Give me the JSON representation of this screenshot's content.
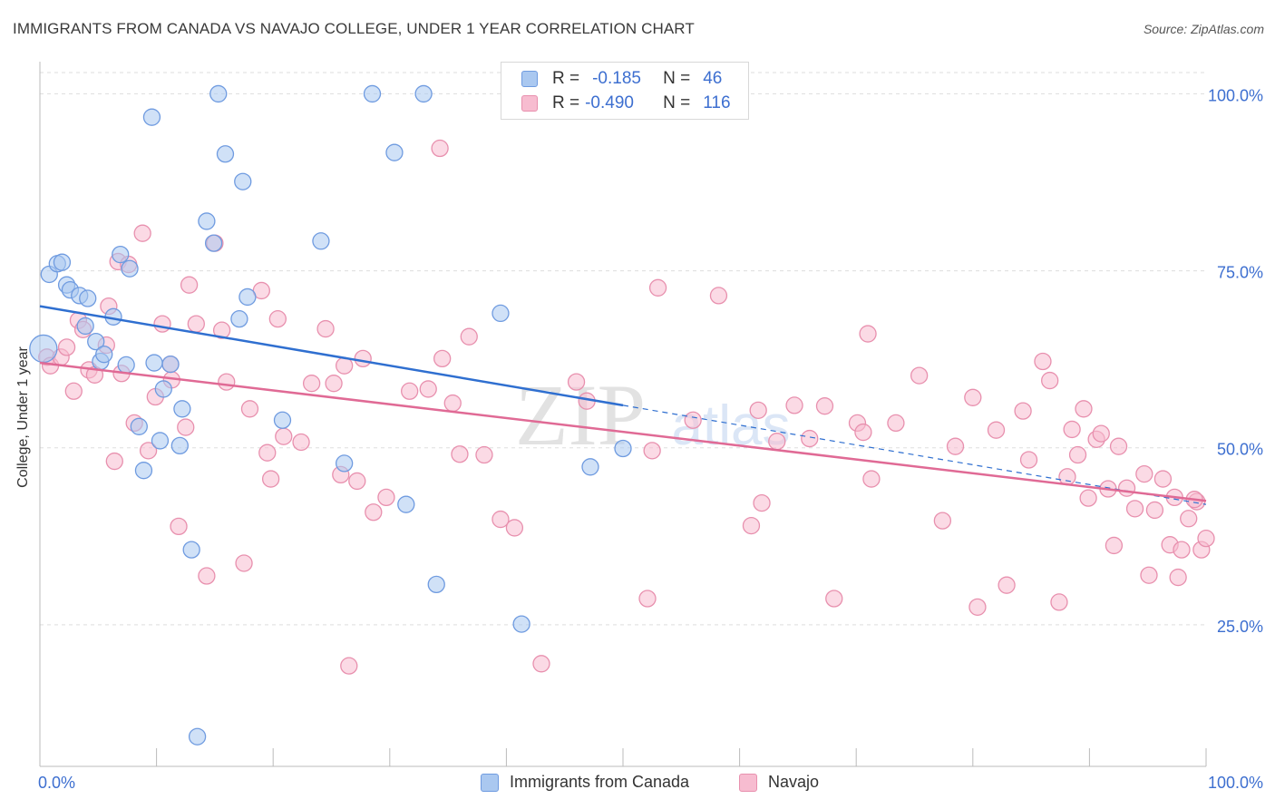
{
  "header": {
    "title": "IMMIGRANTS FROM CANADA VS NAVAJO COLLEGE, UNDER 1 YEAR CORRELATION CHART",
    "source": "Source: ZipAtlas.com"
  },
  "colors": {
    "blue_fill": "#aac8f0",
    "blue_stroke": "#6f9be0",
    "blue_line": "#2f6fd0",
    "pink_fill": "#f7bcd0",
    "pink_stroke": "#e890ae",
    "pink_line": "#e06a95",
    "tick_label": "#3d6fd0",
    "grid": "#dddddd"
  },
  "legend": {
    "rows": [
      {
        "r_label": "R =",
        "r_value": "-0.185",
        "n_label": "N =",
        "n_value": "46",
        "color": "#aac8f0",
        "stroke": "#6f9be0"
      },
      {
        "r_label": "R =",
        "r_value": "-0.490",
        "n_label": "N =",
        "n_value": "116",
        "color": "#f7bcd0",
        "stroke": "#e890ae"
      }
    ]
  },
  "watermark": {
    "zip": "ZIP",
    "atlas": "atlas"
  },
  "chart_data": {
    "type": "scatter",
    "title": "IMMIGRANTS FROM CANADA VS NAVAJO COLLEGE, UNDER 1 YEAR CORRELATION CHART",
    "xlabel": "",
    "ylabel": "College, Under 1 year",
    "xlim": [
      0,
      100
    ],
    "ylim": [
      5,
      103
    ],
    "x_ticks": [
      "0.0%",
      "100.0%"
    ],
    "y_ticks": [
      {
        "value": 25,
        "label": "25.0%"
      },
      {
        "value": 50,
        "label": "50.0%"
      },
      {
        "value": 75,
        "label": "75.0%"
      },
      {
        "value": 100,
        "label": "100.0%"
      }
    ],
    "grid": true,
    "legend_position": "top-center",
    "series": [
      {
        "name": "Immigrants from Canada",
        "color": "#aac8f0",
        "trend": {
          "x": [
            0,
            50
          ],
          "y": [
            70.0,
            56.0
          ],
          "dashed_extension_to": [
            100,
            42.0
          ]
        },
        "points": [
          [
            0.3,
            64.0
          ],
          [
            0.8,
            74.5
          ],
          [
            1.5,
            76.0
          ],
          [
            1.9,
            76.2
          ],
          [
            2.3,
            73.0
          ],
          [
            2.6,
            72.3
          ],
          [
            3.4,
            71.5
          ],
          [
            3.9,
            67.2
          ],
          [
            4.1,
            71.1
          ],
          [
            4.8,
            65.0
          ],
          [
            5.2,
            62.2
          ],
          [
            5.5,
            63.2
          ],
          [
            6.3,
            68.5
          ],
          [
            6.9,
            77.3
          ],
          [
            7.7,
            75.3
          ],
          [
            7.4,
            61.7
          ],
          [
            8.5,
            53.0
          ],
          [
            8.9,
            46.8
          ],
          [
            9.6,
            96.7
          ],
          [
            9.8,
            62.0
          ],
          [
            10.3,
            51.0
          ],
          [
            10.6,
            58.3
          ],
          [
            11.2,
            61.8
          ],
          [
            12.0,
            50.3
          ],
          [
            12.2,
            55.5
          ],
          [
            13.0,
            35.6
          ],
          [
            13.5,
            9.2
          ],
          [
            14.3,
            82.0
          ],
          [
            14.9,
            78.9
          ],
          [
            15.3,
            100.0
          ],
          [
            15.9,
            91.5
          ],
          [
            17.1,
            68.2
          ],
          [
            17.4,
            87.6
          ],
          [
            17.8,
            71.3
          ],
          [
            20.8,
            53.9
          ],
          [
            24.1,
            79.2
          ],
          [
            26.1,
            47.8
          ],
          [
            28.5,
            100.0
          ],
          [
            30.4,
            91.7
          ],
          [
            31.4,
            42.0
          ],
          [
            32.9,
            100.0
          ],
          [
            34.0,
            30.7
          ],
          [
            39.5,
            69.0
          ],
          [
            41.3,
            25.1
          ],
          [
            47.2,
            47.3
          ],
          [
            50.0,
            49.9
          ]
        ]
      },
      {
        "name": "Navajo",
        "color": "#f7bcd0",
        "trend": {
          "x": [
            0,
            100
          ],
          "y": [
            62.0,
            42.5
          ]
        },
        "points": [
          [
            0.6,
            62.8
          ],
          [
            0.9,
            61.6
          ],
          [
            1.8,
            62.8
          ],
          [
            2.3,
            64.2
          ],
          [
            2.9,
            58.0
          ],
          [
            3.3,
            68.0
          ],
          [
            3.7,
            66.7
          ],
          [
            4.2,
            61.0
          ],
          [
            4.7,
            60.3
          ],
          [
            5.7,
            64.5
          ],
          [
            5.9,
            70.0
          ],
          [
            6.4,
            48.1
          ],
          [
            6.7,
            76.3
          ],
          [
            7.0,
            60.5
          ],
          [
            7.6,
            75.9
          ],
          [
            8.1,
            53.5
          ],
          [
            8.8,
            80.3
          ],
          [
            9.3,
            49.6
          ],
          [
            9.9,
            57.2
          ],
          [
            10.5,
            67.5
          ],
          [
            11.2,
            61.8
          ],
          [
            11.3,
            59.6
          ],
          [
            11.9,
            38.9
          ],
          [
            12.5,
            52.9
          ],
          [
            12.8,
            73.0
          ],
          [
            13.4,
            67.5
          ],
          [
            14.3,
            31.9
          ],
          [
            15.0,
            78.9
          ],
          [
            15.6,
            66.6
          ],
          [
            16.0,
            59.3
          ],
          [
            17.5,
            33.7
          ],
          [
            18.0,
            55.5
          ],
          [
            19.0,
            72.2
          ],
          [
            19.5,
            49.3
          ],
          [
            19.8,
            45.6
          ],
          [
            20.4,
            68.2
          ],
          [
            20.9,
            51.6
          ],
          [
            22.4,
            50.8
          ],
          [
            23.3,
            59.1
          ],
          [
            24.5,
            66.8
          ],
          [
            25.2,
            59.1
          ],
          [
            25.8,
            46.2
          ],
          [
            26.1,
            61.6
          ],
          [
            26.5,
            19.2
          ],
          [
            27.2,
            45.3
          ],
          [
            27.7,
            62.6
          ],
          [
            28.6,
            40.9
          ],
          [
            29.7,
            43.0
          ],
          [
            31.7,
            58.0
          ],
          [
            33.3,
            58.3
          ],
          [
            34.3,
            92.3
          ],
          [
            34.5,
            62.6
          ],
          [
            35.4,
            56.3
          ],
          [
            36.0,
            49.1
          ],
          [
            36.8,
            65.7
          ],
          [
            38.1,
            49.0
          ],
          [
            39.5,
            39.9
          ],
          [
            40.7,
            38.7
          ],
          [
            43.0,
            19.5
          ],
          [
            46.0,
            59.3
          ],
          [
            46.9,
            56.6
          ],
          [
            52.1,
            28.7
          ],
          [
            52.5,
            49.6
          ],
          [
            53.0,
            72.6
          ],
          [
            56.0,
            53.9
          ],
          [
            58.2,
            71.5
          ],
          [
            61.0,
            39.0
          ],
          [
            61.6,
            55.3
          ],
          [
            61.9,
            42.2
          ],
          [
            63.2,
            50.9
          ],
          [
            64.7,
            56.0
          ],
          [
            66.0,
            51.3
          ],
          [
            67.3,
            55.9
          ],
          [
            68.1,
            28.7
          ],
          [
            70.1,
            53.5
          ],
          [
            70.6,
            52.2
          ],
          [
            71.0,
            66.1
          ],
          [
            71.3,
            45.6
          ],
          [
            73.4,
            53.5
          ],
          [
            75.4,
            60.2
          ],
          [
            77.4,
            39.7
          ],
          [
            78.5,
            50.2
          ],
          [
            80.0,
            57.1
          ],
          [
            80.4,
            27.5
          ],
          [
            82.0,
            52.5
          ],
          [
            82.9,
            30.6
          ],
          [
            84.3,
            55.2
          ],
          [
            84.8,
            48.3
          ],
          [
            86.0,
            62.2
          ],
          [
            86.6,
            59.5
          ],
          [
            87.4,
            28.2
          ],
          [
            88.1,
            45.9
          ],
          [
            88.5,
            52.6
          ],
          [
            89.0,
            49.0
          ],
          [
            89.5,
            55.5
          ],
          [
            89.9,
            42.9
          ],
          [
            90.6,
            51.2
          ],
          [
            91.0,
            52.0
          ],
          [
            91.6,
            44.2
          ],
          [
            92.1,
            36.2
          ],
          [
            92.5,
            50.2
          ],
          [
            93.2,
            44.3
          ],
          [
            93.9,
            41.4
          ],
          [
            94.7,
            46.3
          ],
          [
            95.1,
            32.0
          ],
          [
            95.6,
            41.2
          ],
          [
            96.3,
            45.6
          ],
          [
            96.9,
            36.3
          ],
          [
            97.3,
            43.0
          ],
          [
            97.6,
            31.7
          ],
          [
            97.9,
            35.6
          ],
          [
            98.5,
            40.0
          ],
          [
            99.2,
            42.4
          ],
          [
            99.6,
            35.6
          ],
          [
            100.0,
            37.2
          ],
          [
            99.0,
            42.7
          ]
        ]
      }
    ]
  }
}
